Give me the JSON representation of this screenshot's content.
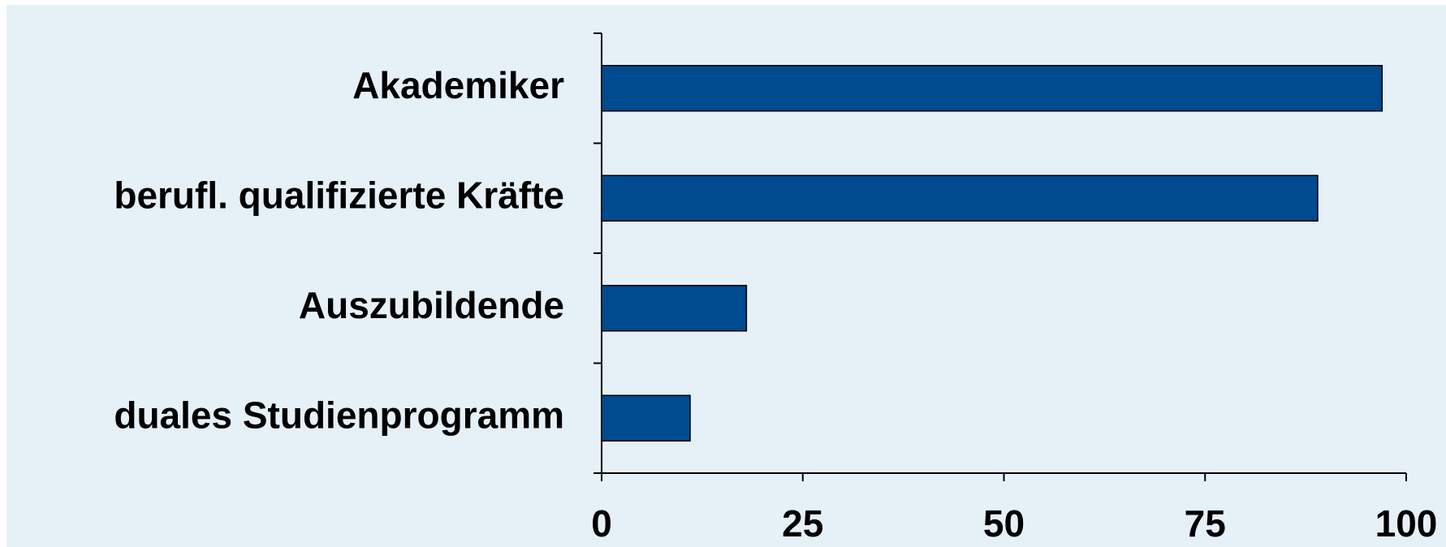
{
  "chart_data": {
    "type": "bar",
    "orientation": "horizontal",
    "categories": [
      "Akademiker",
      "berufl. qualifizierte Kräfte",
      "Auszubildende",
      "duales Studienprogramm"
    ],
    "values": [
      97,
      89,
      18,
      11
    ],
    "color": "#004a8f",
    "xlim": [
      0,
      100
    ],
    "xticks": [
      0,
      25,
      50,
      75,
      100
    ],
    "grid": false
  }
}
